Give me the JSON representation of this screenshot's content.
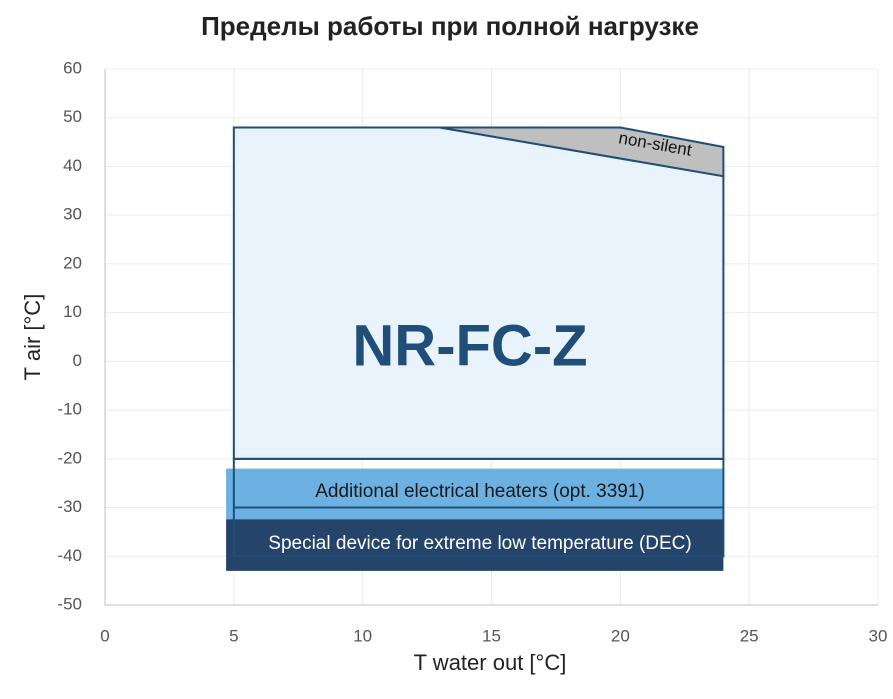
{
  "chart_data": {
    "type": "polygon",
    "title": "Пределы работы при полной нагрузке",
    "x_label": "T water out [°C]",
    "y_label": "T air [°C]",
    "xlim": [
      0,
      30
    ],
    "xticks": [
      0,
      5,
      10,
      15,
      20,
      25,
      30
    ],
    "ylim": [
      -50,
      60
    ],
    "yticks": [
      -50,
      -40,
      -30,
      -20,
      -10,
      0,
      10,
      20,
      30,
      40,
      50,
      60
    ],
    "grid": true,
    "regions": [
      {
        "name": "NR-FC-Z",
        "color": "#e9f3fc",
        "stroke": "#1f4e79",
        "text_color": "#1f4e79",
        "x": [
          5,
          5,
          13,
          24,
          24
        ],
        "y": [
          -20,
          48,
          48,
          38,
          -20
        ]
      },
      {
        "name": "non-silent",
        "color": "#bfbfbf",
        "stroke": "#1f4e79",
        "text_color": "#111111",
        "x": [
          13,
          20,
          24,
          24
        ],
        "y": [
          48,
          48,
          44,
          38
        ]
      },
      {
        "name": "Additional electrical heaters (opt. 3391)",
        "color": "#6cb1e1",
        "text_color": "#1a1a1a",
        "x": [
          4.7,
          24,
          24,
          4.7
        ],
        "y": [
          -22,
          -22,
          -32.4,
          -32.4
        ]
      },
      {
        "name": "Special device for extreme low temperature (DEC)",
        "color": "#25446a",
        "text_color": "#ffffff",
        "x": [
          4.7,
          24,
          24,
          4.7
        ],
        "y": [
          -32.4,
          -32.4,
          -43,
          -43
        ]
      },
      {
        "stroke": "#1f4e79",
        "x": [
          5,
          24,
          24,
          5
        ],
        "y": [
          -20,
          -20,
          -40,
          -40
        ]
      },
      {
        "stroke": "#1f4e79",
        "x": [
          5,
          24
        ],
        "y": [
          -30,
          -30
        ]
      }
    ]
  }
}
